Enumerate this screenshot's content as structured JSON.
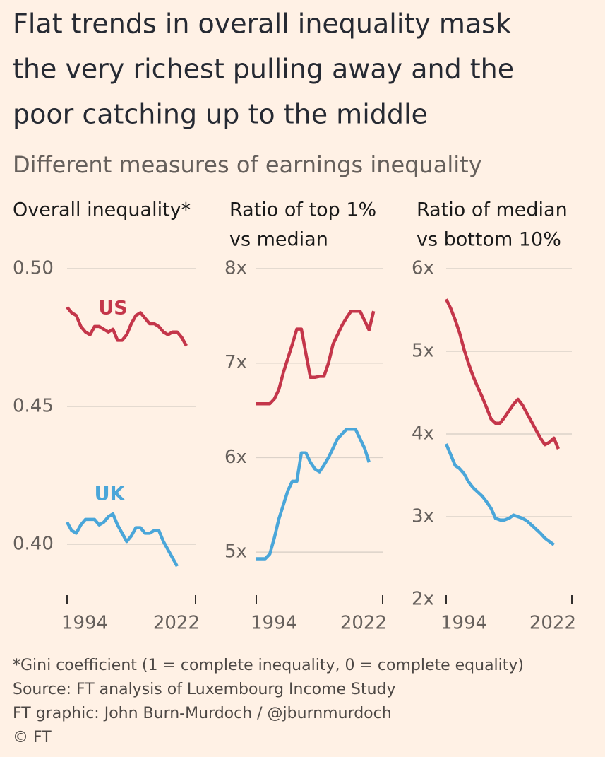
{
  "title": [
    "Flat trends in overall inequality mask",
    "the very richest pulling away and the",
    "poor catching up to the middle"
  ],
  "subtitle": "Different measures of earnings inequality",
  "notes": [
    "*Gini coefficient (1 = complete inequality, 0 = complete equality)",
    "Source: FT analysis of Luxembourg Income Study",
    "FT graphic: John Burn-Murdoch / @jburnmurdoch",
    "© FT"
  ],
  "chart_data": [
    {
      "type": "line",
      "title": [
        "Overall inequality*"
      ],
      "xlim": [
        1994,
        2022
      ],
      "xticks": [
        1994,
        2022
      ],
      "ylim": [
        0.38,
        0.5
      ],
      "yticks": [
        {
          "value": 0.5,
          "label": "0.50"
        },
        0.45,
        {
          "value": 0.4,
          "label": "0.40"
        }
      ],
      "grid": true,
      "series": [
        {
          "name": "US",
          "color": "#c4364a",
          "x": [
            1994,
            1995,
            1996,
            1997,
            1998,
            1999,
            2000,
            2001,
            2002,
            2003,
            2004,
            2005,
            2006,
            2007,
            2008,
            2009,
            2010,
            2011,
            2012,
            2013,
            2014,
            2015,
            2016,
            2017,
            2018,
            2019,
            2020
          ],
          "values": [
            0.486,
            0.484,
            0.483,
            0.479,
            0.477,
            0.476,
            0.479,
            0.479,
            0.478,
            0.477,
            0.478,
            0.474,
            0.474,
            0.476,
            0.48,
            0.483,
            0.484,
            0.482,
            0.48,
            0.48,
            0.479,
            0.477,
            0.476,
            0.477,
            0.477,
            0.475,
            0.472
          ]
        },
        {
          "name": "UK",
          "color": "#4aa6d9",
          "x": [
            1994,
            1995,
            1996,
            1997,
            1998,
            1999,
            2000,
            2001,
            2002,
            2003,
            2004,
            2005,
            2006,
            2007,
            2008,
            2009,
            2010,
            2011,
            2012,
            2013,
            2014,
            2015,
            2016,
            2017,
            2018
          ],
          "values": [
            0.408,
            0.405,
            0.404,
            0.407,
            0.409,
            0.409,
            0.409,
            0.407,
            0.408,
            0.41,
            0.411,
            0.407,
            0.404,
            0.401,
            0.403,
            0.406,
            0.406,
            0.404,
            0.404,
            0.405,
            0.405,
            0.401,
            0.398,
            0.395,
            0.392
          ]
        }
      ]
    },
    {
      "type": "line",
      "title": [
        "Ratio of top 1%",
        "vs median"
      ],
      "xlim": [
        1994,
        2022
      ],
      "xticks": [
        1994,
        2022
      ],
      "ylim": [
        4.5,
        8
      ],
      "yticks": [
        {
          "value": 8,
          "label": "8x"
        },
        {
          "value": 7,
          "label": "7x"
        },
        {
          "value": 6,
          "label": "6x"
        },
        {
          "value": 5,
          "label": "5x"
        }
      ],
      "grid": true,
      "series": [
        {
          "color": "#c4364a",
          "x": [
            1994,
            1995,
            1996,
            1997,
            1998,
            1999,
            2000,
            2001,
            2002,
            2003,
            2004,
            2005,
            2006,
            2007,
            2008,
            2009,
            2010,
            2011,
            2012,
            2013,
            2014,
            2015,
            2016,
            2017,
            2018,
            2019,
            2020
          ],
          "values": [
            6.57,
            6.57,
            6.57,
            6.57,
            6.62,
            6.72,
            6.9,
            7.05,
            7.2,
            7.36,
            7.36,
            7.1,
            6.85,
            6.85,
            6.86,
            6.86,
            7.0,
            7.2,
            7.3,
            7.4,
            7.48,
            7.55,
            7.55,
            7.55,
            7.45,
            7.35,
            7.55
          ]
        },
        {
          "color": "#4aa6d9",
          "x": [
            1994,
            1995,
            1996,
            1997,
            1998,
            1999,
            2000,
            2001,
            2002,
            2003,
            2004,
            2005,
            2006,
            2007,
            2008,
            2009,
            2010,
            2011,
            2012,
            2013,
            2014,
            2015,
            2016,
            2017,
            2018,
            2019
          ],
          "values": [
            4.93,
            4.93,
            4.93,
            4.98,
            5.15,
            5.35,
            5.5,
            5.65,
            5.75,
            5.75,
            6.05,
            6.05,
            5.95,
            5.88,
            5.85,
            5.92,
            6.0,
            6.1,
            6.2,
            6.25,
            6.3,
            6.3,
            6.3,
            6.2,
            6.1,
            5.95
          ]
        }
      ]
    },
    {
      "type": "line",
      "title": [
        "Ratio of median",
        "vs bottom 10%"
      ],
      "xlim": [
        1994,
        2022
      ],
      "xticks": [
        1994,
        2022
      ],
      "ylim": [
        2,
        6
      ],
      "yticks": [
        {
          "value": 6,
          "label": "6x"
        },
        {
          "value": 5,
          "label": "5x"
        },
        {
          "value": 4,
          "label": "4x"
        },
        {
          "value": 3,
          "label": "3x"
        },
        {
          "value": 2,
          "label": "2x"
        }
      ],
      "grid": true,
      "series": [
        {
          "color": "#c4364a",
          "x": [
            1994,
            1995,
            1996,
            1997,
            1998,
            1999,
            2000,
            2001,
            2002,
            2003,
            2004,
            2005,
            2006,
            2007,
            2008,
            2009,
            2010,
            2011,
            2012,
            2013,
            2014,
            2015,
            2016,
            2017,
            2018,
            2019
          ],
          "values": [
            5.63,
            5.52,
            5.38,
            5.22,
            5.02,
            4.85,
            4.7,
            4.57,
            4.45,
            4.32,
            4.18,
            4.13,
            4.13,
            4.2,
            4.28,
            4.36,
            4.42,
            4.35,
            4.25,
            4.15,
            4.05,
            3.95,
            3.87,
            3.9,
            3.95,
            3.82
          ]
        },
        {
          "color": "#4aa6d9",
          "x": [
            1994,
            1995,
            1996,
            1997,
            1998,
            1999,
            2000,
            2001,
            2002,
            2003,
            2004,
            2005,
            2006,
            2007,
            2008,
            2009,
            2010,
            2011,
            2012,
            2013,
            2014,
            2015,
            2016,
            2017,
            2018
          ],
          "values": [
            3.88,
            3.75,
            3.62,
            3.58,
            3.52,
            3.42,
            3.35,
            3.3,
            3.25,
            3.18,
            3.1,
            2.98,
            2.96,
            2.96,
            2.98,
            3.02,
            3.0,
            2.98,
            2.95,
            2.9,
            2.85,
            2.8,
            2.74,
            2.7,
            2.66
          ]
        }
      ]
    }
  ]
}
